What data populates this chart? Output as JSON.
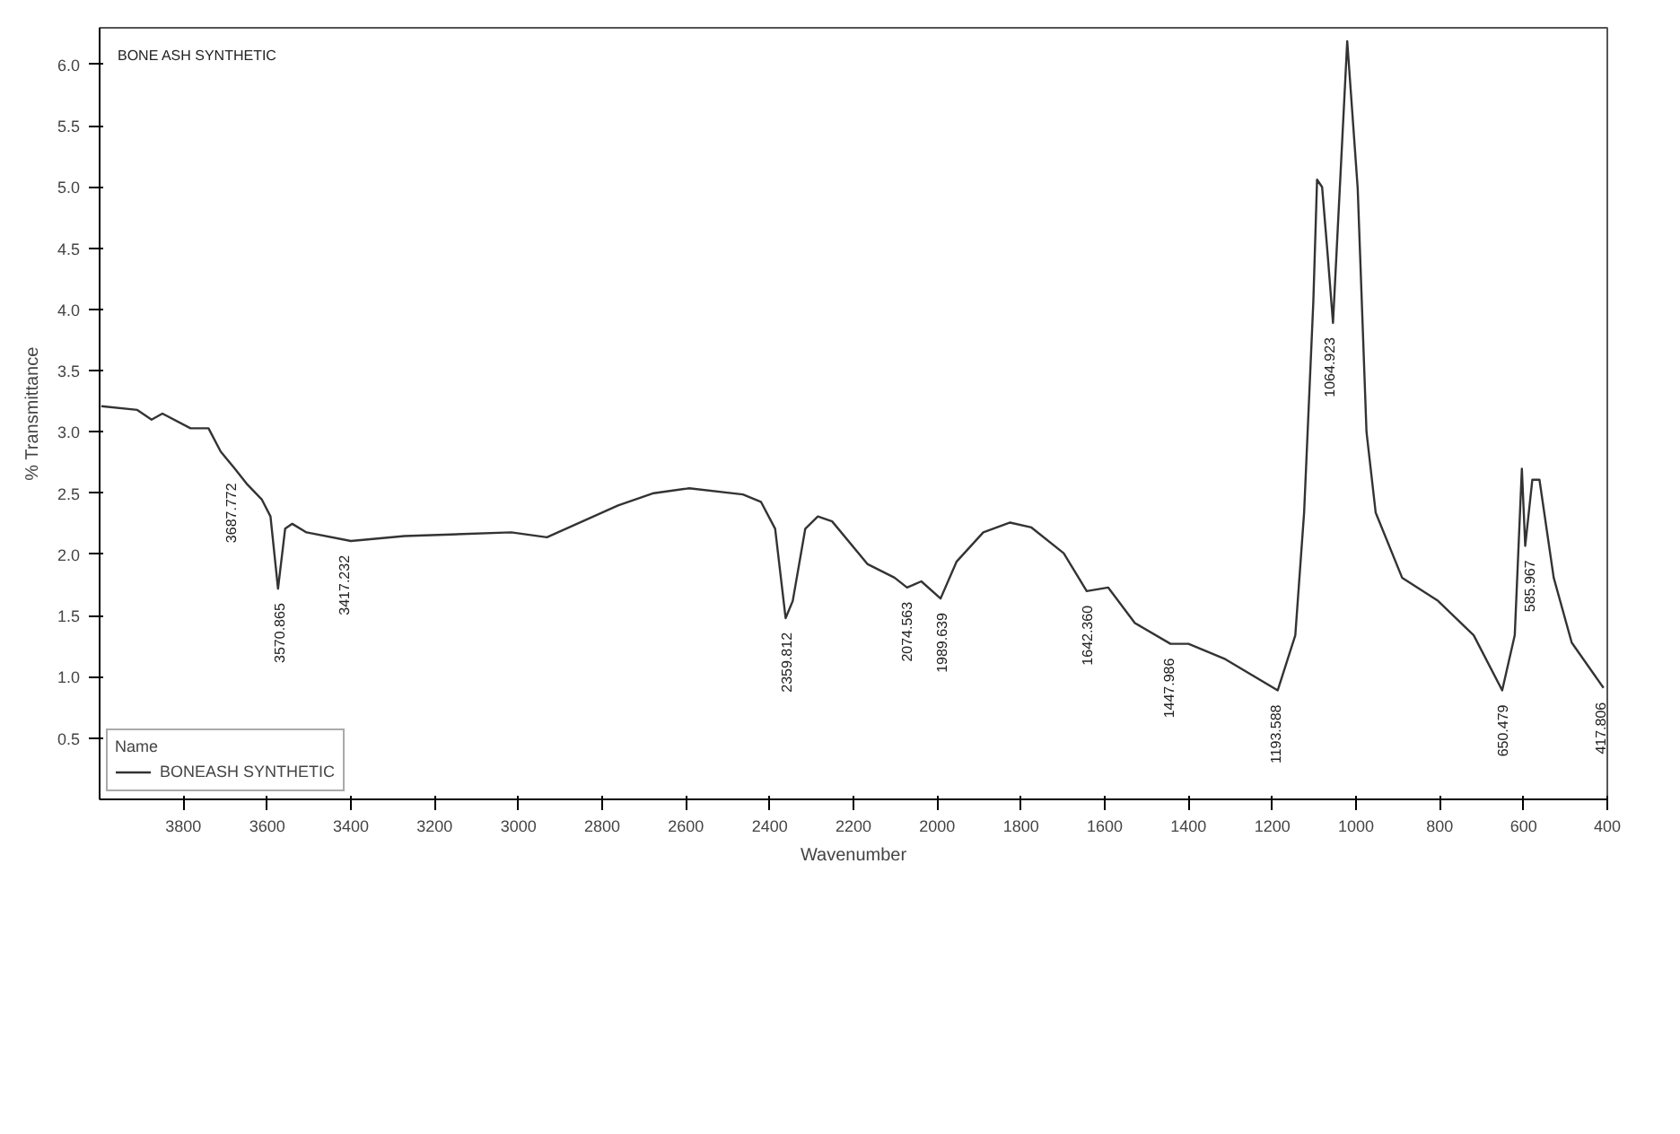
{
  "chart_data": {
    "type": "line",
    "xlabel": "Wavenumber",
    "ylabel": "% Transmittance",
    "legend_title": "Name",
    "legend": "bottom left",
    "grid": false,
    "xlim": [
      4000,
      400
    ],
    "ylim": [
      0,
      6.3
    ],
    "xticks": [
      3800,
      3600,
      3400,
      3200,
      3000,
      2800,
      2600,
      2400,
      2200,
      2000,
      1800,
      1600,
      1400,
      1200,
      1000,
      800,
      600,
      400
    ],
    "yticks": [
      {
        "value": 0.5,
        "label": "0.5"
      },
      {
        "value": 1.0,
        "label": "1.0"
      },
      {
        "value": 1.5,
        "label": "1.5"
      },
      {
        "value": 2.0,
        "label": "2.0"
      },
      {
        "value": 2.5,
        "label": "2.5"
      },
      {
        "value": 3.0,
        "label": "3.0"
      },
      {
        "value": 3.5,
        "label": "3.5"
      },
      {
        "value": 4.0,
        "label": "4.0"
      },
      {
        "value": 4.5,
        "label": "4.5"
      },
      {
        "value": 5.0,
        "label": "5.0"
      },
      {
        "value": 5.5,
        "label": "5.5"
      },
      {
        "value": 6.0,
        "label": "6.0"
      }
    ],
    "series": [
      {
        "name": "BONEASH SYNTHETIC",
        "color": "#333333",
        "x": [
          3996,
          3910,
          3876,
          3850,
          3783,
          3740,
          3711,
          3677,
          3647,
          3613,
          3592,
          3574,
          3557,
          3540,
          3506,
          3400,
          3272,
          3017,
          2932,
          2847,
          2762,
          2677,
          2592,
          2464,
          2421,
          2387,
          2362,
          2345,
          2315,
          2285,
          2251,
          2166,
          2102,
          2072,
          2038,
          1992,
          1954,
          1890,
          1826,
          1775,
          1698,
          1643,
          1592,
          1528,
          1443,
          1400,
          1315,
          1187,
          1145,
          1124,
          1102,
          1093,
          1081,
          1068,
          1055,
          1021,
          996,
          975,
          953,
          890,
          804,
          719,
          651,
          621,
          604,
          596,
          579,
          562,
          528,
          485,
          409
        ],
        "values": [
          3.21,
          3.18,
          3.1,
          3.15,
          3.03,
          3.03,
          2.84,
          2.7,
          2.57,
          2.45,
          2.31,
          1.72,
          2.21,
          2.25,
          2.18,
          2.11,
          2.15,
          2.18,
          2.14,
          2.27,
          2.4,
          2.5,
          2.54,
          2.49,
          2.43,
          2.21,
          1.48,
          1.62,
          2.21,
          2.31,
          2.27,
          1.92,
          1.81,
          1.73,
          1.78,
          1.64,
          1.94,
          2.18,
          2.26,
          2.22,
          2.01,
          1.7,
          1.73,
          1.44,
          1.27,
          1.27,
          1.15,
          0.89,
          1.34,
          2.34,
          4.06,
          5.06,
          5.0,
          4.46,
          3.89,
          6.19,
          4.99,
          3.0,
          2.34,
          1.81,
          1.62,
          1.34,
          0.89,
          1.34,
          2.7,
          2.07,
          2.61,
          2.61,
          1.81,
          1.28,
          0.91
        ]
      }
    ],
    "annotations": [
      "BONE ASH SYNTHETIC",
      {
        "text": "3687.772",
        "x": 3687.772,
        "y": 2.7
      },
      {
        "text": "3570.865",
        "x": 3570.865,
        "y": 1.72
      },
      {
        "text": "3417.232",
        "x": 3417.232,
        "y": 2.11
      },
      {
        "text": "2359.812",
        "x": 2359.812,
        "y": 1.48
      },
      {
        "text": "2074.563",
        "x": 2074.563,
        "y": 1.73
      },
      {
        "text": "1989.639",
        "x": 1989.639,
        "y": 1.64
      },
      {
        "text": "1642.360",
        "x": 1642.36,
        "y": 1.7
      },
      {
        "text": "1447.986",
        "x": 1447.986,
        "y": 1.27
      },
      {
        "text": "1193.588",
        "x": 1193.588,
        "y": 0.89
      },
      {
        "text": "1064.923",
        "x": 1064.923,
        "y": 3.89
      },
      {
        "text": "650.479",
        "x": 650.479,
        "y": 0.89
      },
      {
        "text": "585.967",
        "x": 585.967,
        "y": 2.07
      },
      {
        "text": "417.806",
        "x": 417.806,
        "y": 0.91
      }
    ]
  }
}
